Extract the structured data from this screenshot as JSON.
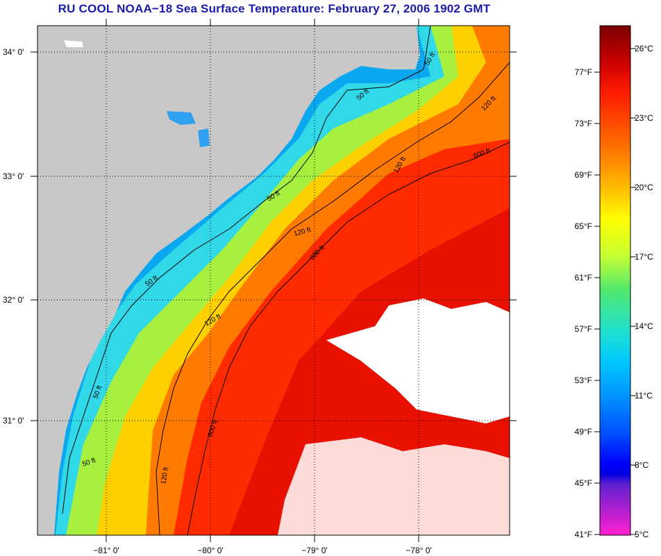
{
  "title": "RU COOL  NOAA−18  Sea Surface Temperature:  February 27, 2006 1902 GMT",
  "map": {
    "lat_labels": [
      "34° 0'",
      "33° 0'",
      "32° 0'",
      "31° 0'"
    ],
    "lon_labels": [
      "−81° 0'",
      "−80° 0'",
      "−79° 0'",
      "−78° 0'"
    ],
    "contour_labels": [
      "50 ft",
      "50 ft",
      "50 ft",
      "50 ft",
      "50 ft",
      "50 ft",
      "120 ft",
      "120 ft",
      "120 ft",
      "120 ft",
      "120 ft",
      "600 ft",
      "600 ft",
      "600 ft"
    ],
    "colors": {
      "land": "#c8c8c8",
      "cloud": "#ffffff",
      "frame": "#000000"
    }
  },
  "colorbar": {
    "fahrenheit_labels": [
      "77°F",
      "73°F",
      "69°F",
      "65°F",
      "61°F",
      "57°F",
      "53°F",
      "49°F",
      "45°F",
      "41°F"
    ],
    "celsius_labels": [
      "26°C",
      "23°C",
      "20°C",
      "17°C",
      "14°C",
      "11°C",
      "8°C",
      "5°C"
    ]
  }
}
